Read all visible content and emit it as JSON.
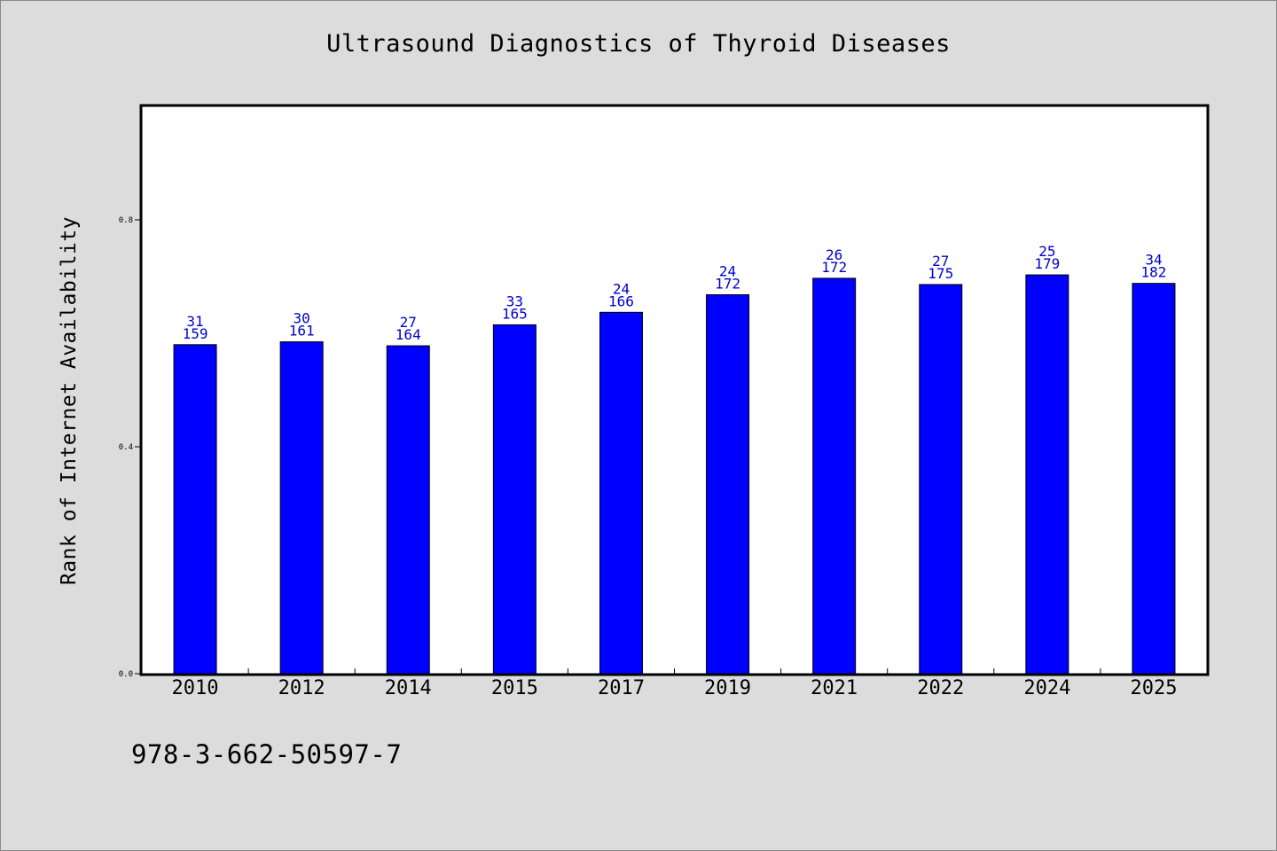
{
  "chart_data": {
    "type": "bar",
    "title": "Ultrasound Diagnostics of Thyroid Diseases",
    "xlabel": "",
    "ylabel": "Rank of Internet Availability",
    "categories": [
      "2010",
      "2012",
      "2014",
      "2015",
      "2017",
      "2019",
      "2021",
      "2022",
      "2024",
      "2025"
    ],
    "values": [
      0.58,
      0.585,
      0.578,
      0.615,
      0.637,
      0.668,
      0.697,
      0.686,
      0.703,
      0.688
    ],
    "label_top": [
      "31",
      "30",
      "27",
      "33",
      "24",
      "24",
      "26",
      "27",
      "25",
      "34"
    ],
    "label_bottom": [
      "159",
      "161",
      "164",
      "165",
      "166",
      "172",
      "172",
      "175",
      "179",
      "182"
    ],
    "ylim": [
      0,
      1.0
    ],
    "yticks": [
      0.0,
      0.4,
      0.8
    ],
    "ytick_labels": [
      "0.0",
      "0.4",
      "0.8"
    ],
    "grid": false,
    "legend": "none",
    "colors": {
      "bar": "#0000ff",
      "bar_stroke": "#000000",
      "data_label": "#0000cc",
      "plot_background": "#ffffff",
      "page_background": "#dcdcdc"
    }
  },
  "footer_note": "978-3-662-50597-7"
}
